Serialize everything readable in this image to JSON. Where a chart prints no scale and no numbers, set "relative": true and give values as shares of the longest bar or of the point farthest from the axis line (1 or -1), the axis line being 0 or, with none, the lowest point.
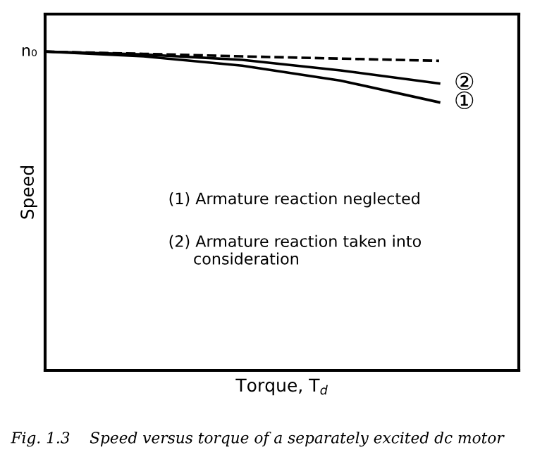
{
  "chart_data": {
    "type": "line",
    "relative": true,
    "title": "Fig. 1.3    Speed versus torque of a separately excited dc motor",
    "xlabel": "Torque, T$_{d}$",
    "ylabel": "Speed",
    "categories": [
      null,
      null,
      null,
      null,
      null
    ],
    "series": [
      {
        "name": "①",
        "color": "#000000",
        "line_style": "solid",
        "values": [
          1,
          0.985,
          0.956,
          0.909,
          0.841
        ]
      },
      {
        "name": "②",
        "color": "#000000",
        "line_style": "solid",
        "values": [
          1,
          0.991,
          0.974,
          0.941,
          0.9
        ]
      },
      {
        "color": "#000000",
        "line_style": "dashed",
        "values": [
          1,
          0.993,
          0.985,
          0.978,
          0.971
        ]
      }
    ],
    "annotations": [
      "n₀",
      "(1) Armature reaction neglected",
      "(2) Armature reaction taken into\n     consideration"
    ]
  }
}
